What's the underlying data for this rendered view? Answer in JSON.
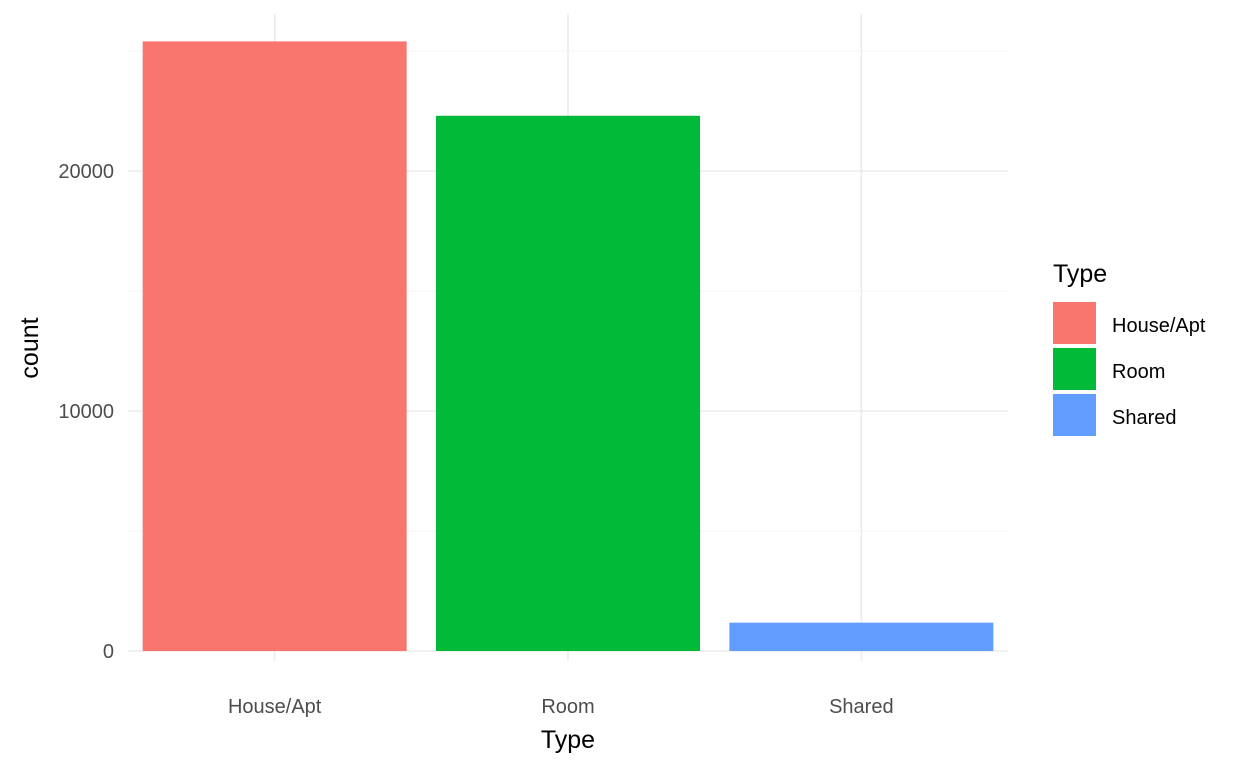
{
  "chart_data": {
    "type": "bar",
    "categories": [
      "House/Apt",
      "Room",
      "Shared"
    ],
    "values": [
      25400,
      22300,
      1180
    ],
    "colors": [
      "#F8766D",
      "#00BA38",
      "#619CFF"
    ],
    "title": "",
    "xlabel": "Type",
    "ylabel": "count",
    "ylim": [
      0,
      26500
    ],
    "yticks": [
      0,
      10000,
      20000
    ],
    "ytick_labels": [
      "0",
      "10000",
      "20000"
    ],
    "grid": true,
    "legend": {
      "title": "Type",
      "placement": "right",
      "entries": [
        "House/Apt",
        "Room",
        "Shared"
      ]
    }
  }
}
